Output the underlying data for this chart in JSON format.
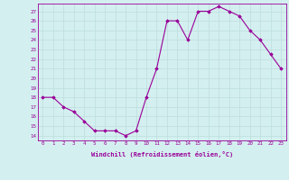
{
  "x": [
    0,
    1,
    2,
    3,
    4,
    5,
    6,
    7,
    8,
    9,
    10,
    11,
    12,
    13,
    14,
    15,
    16,
    17,
    18,
    19,
    20,
    21,
    22,
    23
  ],
  "y": [
    18,
    18,
    17,
    16.5,
    15.5,
    14.5,
    14.5,
    14.5,
    14,
    14.5,
    18,
    21,
    26,
    26,
    24,
    27,
    27,
    27.5,
    27,
    26.5,
    25,
    24,
    22.5,
    21
  ],
  "line_color": "#990099",
  "marker": "D",
  "markersize": 1.8,
  "linewidth": 0.8,
  "xlabel": "Windchill (Refroidissement éolien,°C)",
  "ylabel_ticks": [
    14,
    15,
    16,
    17,
    18,
    19,
    20,
    21,
    22,
    23,
    24,
    25,
    26,
    27
  ],
  "ylim": [
    13.5,
    27.8
  ],
  "xlim": [
    -0.5,
    23.5
  ],
  "bg_color": "#d4efef",
  "grid_color": "#c0e0e0",
  "tick_label_color": "#990099",
  "xlabel_color": "#990099"
}
